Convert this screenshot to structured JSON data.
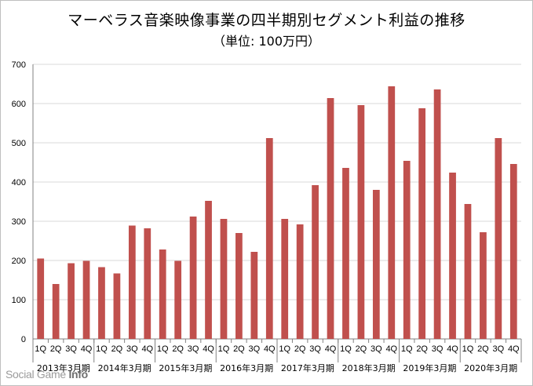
{
  "title": {
    "line1": "マーベラス音楽映像事業の四半期別セグメント利益の推移",
    "line2": "（単位: 100万円）"
  },
  "watermark": {
    "text1": "Social Game ",
    "text2": "Info"
  },
  "colors": {
    "bar": "#c0504d",
    "grid": "#d9d9d9",
    "axis": "#808080"
  },
  "chart_data": {
    "type": "bar",
    "title": "マーベラス音楽映像事業の四半期別セグメント利益の推移",
    "subtitle": "（単位: 100万円）",
    "ylim": [
      0,
      700
    ],
    "yticks": [
      0,
      100,
      200,
      300,
      400,
      500,
      600,
      700
    ],
    "grid": true,
    "groups": [
      {
        "label": "2013年3月期",
        "quarters": [
          "1Q",
          "2Q",
          "3Q",
          "4Q"
        ],
        "values": [
          205,
          140,
          193,
          199
        ]
      },
      {
        "label": "2014年3月期",
        "quarters": [
          "1Q",
          "2Q",
          "3Q",
          "4Q"
        ],
        "values": [
          183,
          167,
          289,
          282
        ]
      },
      {
        "label": "2015年3月期",
        "quarters": [
          "1Q",
          "2Q",
          "3Q",
          "4Q"
        ],
        "values": [
          228,
          199,
          312,
          352
        ]
      },
      {
        "label": "2016年3月期",
        "quarters": [
          "1Q",
          "2Q",
          "3Q",
          "4Q"
        ],
        "values": [
          306,
          270,
          222,
          512
        ]
      },
      {
        "label": "2017年3月期",
        "quarters": [
          "1Q",
          "2Q",
          "3Q",
          "4Q"
        ],
        "values": [
          306,
          292,
          392,
          614
        ]
      },
      {
        "label": "2018年3月期",
        "quarters": [
          "1Q",
          "2Q",
          "3Q",
          "4Q"
        ],
        "values": [
          436,
          596,
          380,
          644
        ]
      },
      {
        "label": "2019年3月期",
        "quarters": [
          "1Q",
          "2Q",
          "3Q",
          "4Q"
        ],
        "values": [
          454,
          588,
          636,
          424
        ]
      },
      {
        "label": "2020年3月期",
        "quarters": [
          "1Q",
          "2Q",
          "3Q",
          "4Q"
        ],
        "values": [
          344,
          272,
          512,
          446
        ]
      }
    ]
  }
}
